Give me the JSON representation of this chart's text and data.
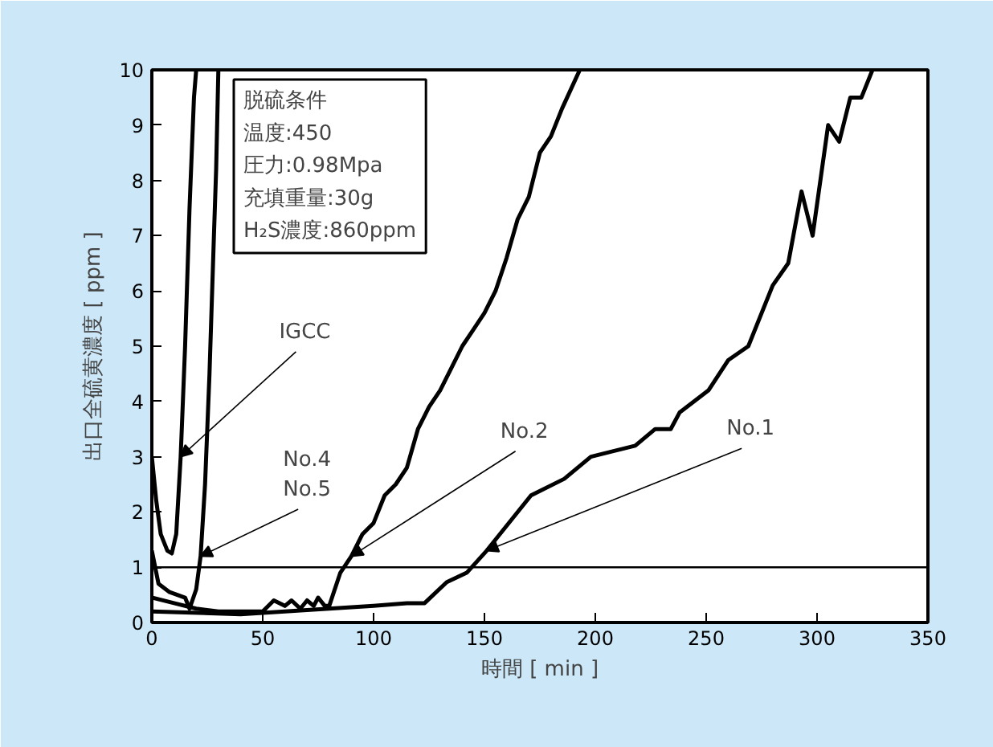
{
  "chart_data": {
    "type": "line",
    "xlabel": "時間 [ min ]",
    "ylabel": "出口全硫黄濃度 [ ppm ]",
    "xlim": [
      0,
      350
    ],
    "ylim": [
      0,
      10
    ],
    "xticks": [
      0,
      50,
      100,
      150,
      200,
      250,
      300,
      350
    ],
    "yticks": [
      0,
      1,
      2,
      3,
      4,
      5,
      6,
      7,
      8,
      9,
      10
    ],
    "grid": false,
    "line_style": "solid",
    "marker": "none",
    "series": [
      {
        "color": "#000000",
        "x": [
          0,
          2,
          4,
          7,
          9,
          11,
          13,
          15,
          17,
          19,
          20
        ],
        "values": [
          3.0,
          2.2,
          1.6,
          1.3,
          1.25,
          1.6,
          3.0,
          5.0,
          7.5,
          9.5,
          10
        ]
      },
      {
        "color": "#000000",
        "x": [
          0,
          3,
          8,
          15,
          17,
          20,
          22,
          24,
          26,
          28,
          29,
          30
        ],
        "values": [
          1.3,
          0.7,
          0.55,
          0.45,
          0.25,
          0.6,
          1.2,
          2.5,
          4.5,
          7.0,
          8.2,
          10
        ]
      },
      {
        "color": "#000000",
        "x": [
          0,
          10,
          20,
          30,
          50,
          55,
          60,
          63,
          67,
          70,
          73,
          75,
          78,
          80,
          85,
          90,
          95,
          100,
          105,
          110,
          115,
          120,
          125,
          130,
          135,
          140,
          145,
          150,
          155,
          160,
          165,
          170,
          175,
          180,
          185,
          193
        ],
        "values": [
          0.45,
          0.35,
          0.25,
          0.2,
          0.2,
          0.4,
          0.3,
          0.4,
          0.25,
          0.4,
          0.3,
          0.45,
          0.3,
          0.3,
          0.9,
          1.2,
          1.6,
          1.8,
          2.3,
          2.5,
          2.8,
          3.5,
          3.9,
          4.2,
          4.6,
          5.0,
          5.3,
          5.6,
          6.0,
          6.6,
          7.3,
          7.7,
          8.5,
          8.8,
          9.3,
          10
        ]
      },
      {
        "color": "#000000",
        "x": [
          0,
          40,
          80,
          100,
          115,
          123,
          133,
          142,
          151,
          171,
          186,
          198,
          218,
          227,
          234,
          238,
          251,
          260,
          269,
          280,
          287,
          293,
          298,
          305,
          310,
          315,
          320,
          325
        ],
        "values": [
          0.2,
          0.15,
          0.25,
          0.3,
          0.35,
          0.35,
          0.73,
          0.9,
          1.3,
          2.3,
          2.6,
          3.0,
          3.2,
          3.5,
          3.5,
          3.8,
          4.2,
          4.75,
          5.0,
          6.1,
          6.5,
          7.8,
          7.0,
          9.0,
          8.7,
          9.5,
          9.5,
          10
        ]
      }
    ],
    "ref_lines": [
      {
        "axis": "y",
        "value": 1,
        "color": "#000000"
      }
    ],
    "annotations": [
      "脱硫条件",
      "温度:450",
      "圧力:0.98Mpa",
      "充填重量:30g",
      "H₂S濃度:860ppm",
      {
        "text": "IGCC",
        "x": 13,
        "y": 3.0
      },
      {
        "text": "No.4\nNo.5",
        "x": 22,
        "y": 1.2
      },
      {
        "text": "No.2",
        "x": 90,
        "y": 1.2
      },
      {
        "text": "No.1",
        "x": 151,
        "y": 1.3
      }
    ]
  }
}
